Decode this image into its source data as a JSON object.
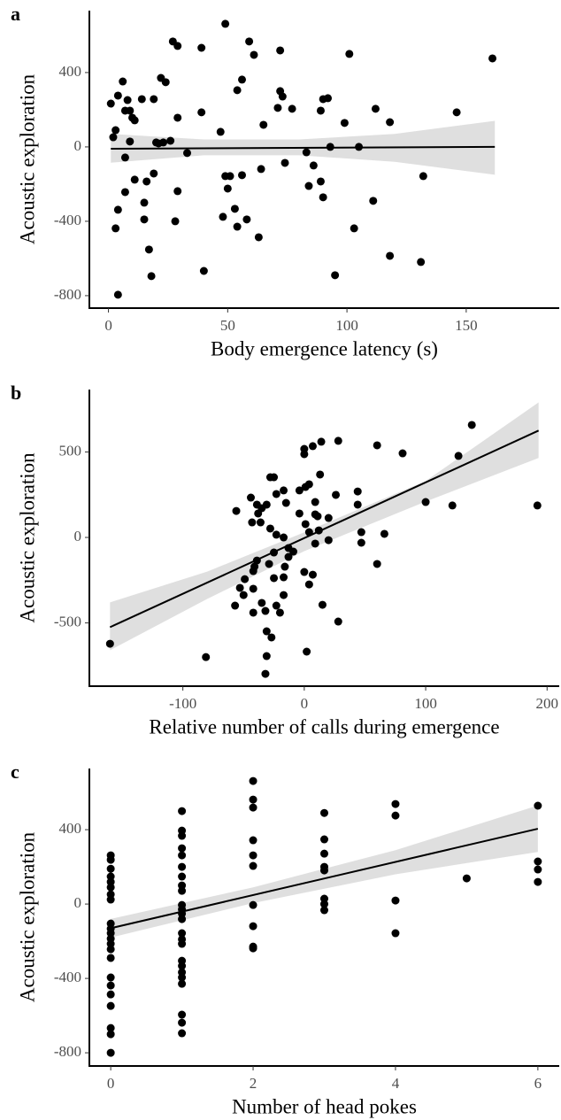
{
  "chart_data": [
    {
      "type": "scatter",
      "panel_label": "a",
      "xlabel": "Body emergence latency (s)",
      "ylabel": "Acoustic exploration",
      "color": "#000000",
      "x": [
        161,
        49,
        27,
        29,
        39,
        59,
        61,
        72,
        101,
        22,
        24,
        6,
        1,
        4,
        8,
        7,
        9,
        10,
        11,
        14,
        19,
        56,
        54,
        72,
        73,
        71,
        77,
        89,
        90,
        92,
        112,
        146,
        39,
        29,
        65,
        99,
        118,
        3,
        2,
        9,
        20,
        21,
        23,
        26,
        47,
        93,
        105,
        7,
        33,
        83,
        86,
        74,
        64,
        19,
        11,
        16,
        7,
        29,
        51,
        49,
        56,
        50,
        84,
        89,
        90,
        111,
        132,
        4,
        15,
        53,
        48,
        58,
        15,
        28,
        54,
        3,
        63,
        103,
        17,
        118,
        131,
        18,
        40,
        95,
        4
      ],
      "y": [
        476,
        662,
        567,
        543,
        533,
        567,
        495,
        519,
        500,
        371,
        348,
        352,
        233,
        276,
        252,
        195,
        195,
        157,
        143,
        257,
        257,
        362,
        305,
        300,
        271,
        210,
        205,
        195,
        257,
        262,
        205,
        186,
        186,
        157,
        119,
        129,
        133,
        90,
        52,
        29,
        24,
        19,
        24,
        33,
        81,
        0,
        0,
        -57,
        -33,
        -29,
        -100,
        -86,
        -119,
        -143,
        -176,
        -186,
        -243,
        -238,
        -157,
        -157,
        -152,
        -224,
        -210,
        -186,
        -271,
        -290,
        -157,
        -338,
        -300,
        -333,
        -376,
        -390,
        -390,
        -400,
        -429,
        -438,
        -486,
        -438,
        -552,
        -586,
        -619,
        -695,
        -667,
        -690,
        -795
      ],
      "fit": {
        "x": [
          1,
          162
        ],
        "y": [
          -10,
          0
        ]
      },
      "band": {
        "x": [
          1,
          40,
          80,
          120,
          162
        ],
        "lower": [
          -85,
          -45,
          -45,
          -80,
          -150
        ],
        "upper": [
          70,
          40,
          40,
          70,
          140
        ]
      },
      "xlim": [
        -8,
        189
      ],
      "ylim": [
        -867,
        733
      ],
      "xticks": [
        0,
        50,
        100,
        150
      ],
      "yticks": [
        -800,
        -400,
        0,
        400
      ]
    },
    {
      "type": "scatter",
      "panel_label": "b",
      "xlabel": "Relative number of calls during emergence",
      "ylabel": "Acoustic exploration",
      "color": "#000000",
      "x": [
        138,
        -160,
        -81,
        192,
        100,
        122,
        127,
        81,
        60,
        28,
        14,
        7,
        0,
        0,
        13,
        44,
        26,
        44,
        47,
        47,
        66,
        60,
        28,
        20,
        20,
        11,
        9,
        1,
        4,
        -4,
        -4,
        1,
        4,
        9,
        12,
        9,
        0,
        4,
        7,
        15,
        2,
        -28,
        -25,
        -23,
        -17,
        -15,
        -39,
        -31,
        -35,
        -38,
        -44,
        -43,
        -36,
        -56,
        -28,
        -23,
        -17,
        -13,
        -9,
        -13,
        -16,
        -25,
        -29,
        -39,
        -41,
        -42,
        -25,
        -17,
        -49,
        -53,
        -42,
        -50,
        -17,
        -57,
        -35,
        -23,
        -42,
        -32,
        -20,
        -31,
        -27,
        -31,
        -32
      ],
      "y": [
        658,
        -622,
        -700,
        187,
        207,
        187,
        477,
        492,
        539,
        565,
        560,
        534,
        518,
        487,
        368,
        269,
        249,
        192,
        31,
        -31,
        21,
        -155,
        -492,
        -16,
        114,
        124,
        207,
        295,
        311,
        275,
        140,
        78,
        31,
        -36,
        41,
        135,
        -202,
        -275,
        -218,
        -394,
        -668,
        352,
        352,
        254,
        275,
        202,
        192,
        192,
        171,
        140,
        233,
        88,
        88,
        155,
        52,
        16,
        0,
        -62,
        -83,
        -114,
        -171,
        -88,
        -155,
        -135,
        -171,
        -197,
        -238,
        -233,
        -244,
        -295,
        -300,
        -337,
        -337,
        -399,
        -383,
        -399,
        -440,
        -430,
        -440,
        -549,
        -585,
        -694,
        -798
      ],
      "fit": {
        "x": [
          -160,
          193
        ],
        "y": [
          -525,
          625
        ]
      },
      "band": {
        "x": [
          -160,
          -80,
          0,
          100,
          193
        ],
        "lower": [
          -660,
          -360,
          -80,
          210,
          465
        ],
        "upper": [
          -380,
          -200,
          30,
          330,
          790
        ]
      },
      "xlim": [
        -177,
        210
      ],
      "ylim": [
        -870,
        865
      ],
      "xticks": [
        -100,
        0,
        100,
        200
      ],
      "yticks": [
        -500,
        0,
        500
      ]
    },
    {
      "type": "scatter",
      "panel_label": "c",
      "xlabel": "Number of head pokes",
      "ylabel": "Acoustic exploration",
      "color": "#000000",
      "x": [
        0,
        0,
        0,
        0,
        0,
        0,
        0,
        0,
        0,
        0,
        0,
        0,
        0,
        0,
        0,
        0,
        0,
        0,
        0,
        0,
        0,
        0,
        1,
        1,
        1,
        1,
        1,
        1,
        1,
        1,
        1,
        1,
        1,
        1,
        1,
        1,
        1,
        1,
        1,
        1,
        1,
        1,
        1,
        1,
        1,
        1,
        2,
        2,
        2,
        2,
        2,
        2,
        2,
        2,
        2,
        2,
        3,
        3,
        3,
        3,
        3,
        3,
        3,
        3,
        4,
        4,
        4,
        4,
        5,
        6,
        6,
        6,
        6
      ],
      "y": [
        262,
        238,
        190,
        148,
        119,
        90,
        52,
        24,
        -105,
        -133,
        -157,
        -186,
        -214,
        -243,
        -290,
        -395,
        -438,
        -486,
        -548,
        -667,
        -700,
        -800,
        500,
        395,
        367,
        300,
        262,
        200,
        148,
        100,
        71,
        -5,
        -29,
        -52,
        -81,
        -157,
        -190,
        -214,
        -305,
        -333,
        -367,
        -395,
        -429,
        -595,
        -638,
        -695,
        662,
        562,
        519,
        343,
        262,
        205,
        -5,
        -119,
        -229,
        -238,
        490,
        348,
        271,
        200,
        181,
        29,
        0,
        -33,
        538,
        476,
        19,
        -157,
        138,
        529,
        229,
        186,
        119
      ],
      "fit": {
        "x": [
          0,
          6
        ],
        "y": [
          -130,
          405
        ]
      },
      "band": {
        "x": [
          0,
          2,
          4,
          6
        ],
        "lower": [
          -180,
          5,
          160,
          280
        ],
        "upper": [
          -80,
          90,
          290,
          530
        ]
      },
      "xlim": [
        -0.3,
        6.3
      ],
      "ylim": [
        -871,
        729
      ],
      "xticks": [
        0,
        2,
        4,
        6
      ],
      "yticks": [
        -800,
        -400,
        0,
        400
      ]
    }
  ]
}
